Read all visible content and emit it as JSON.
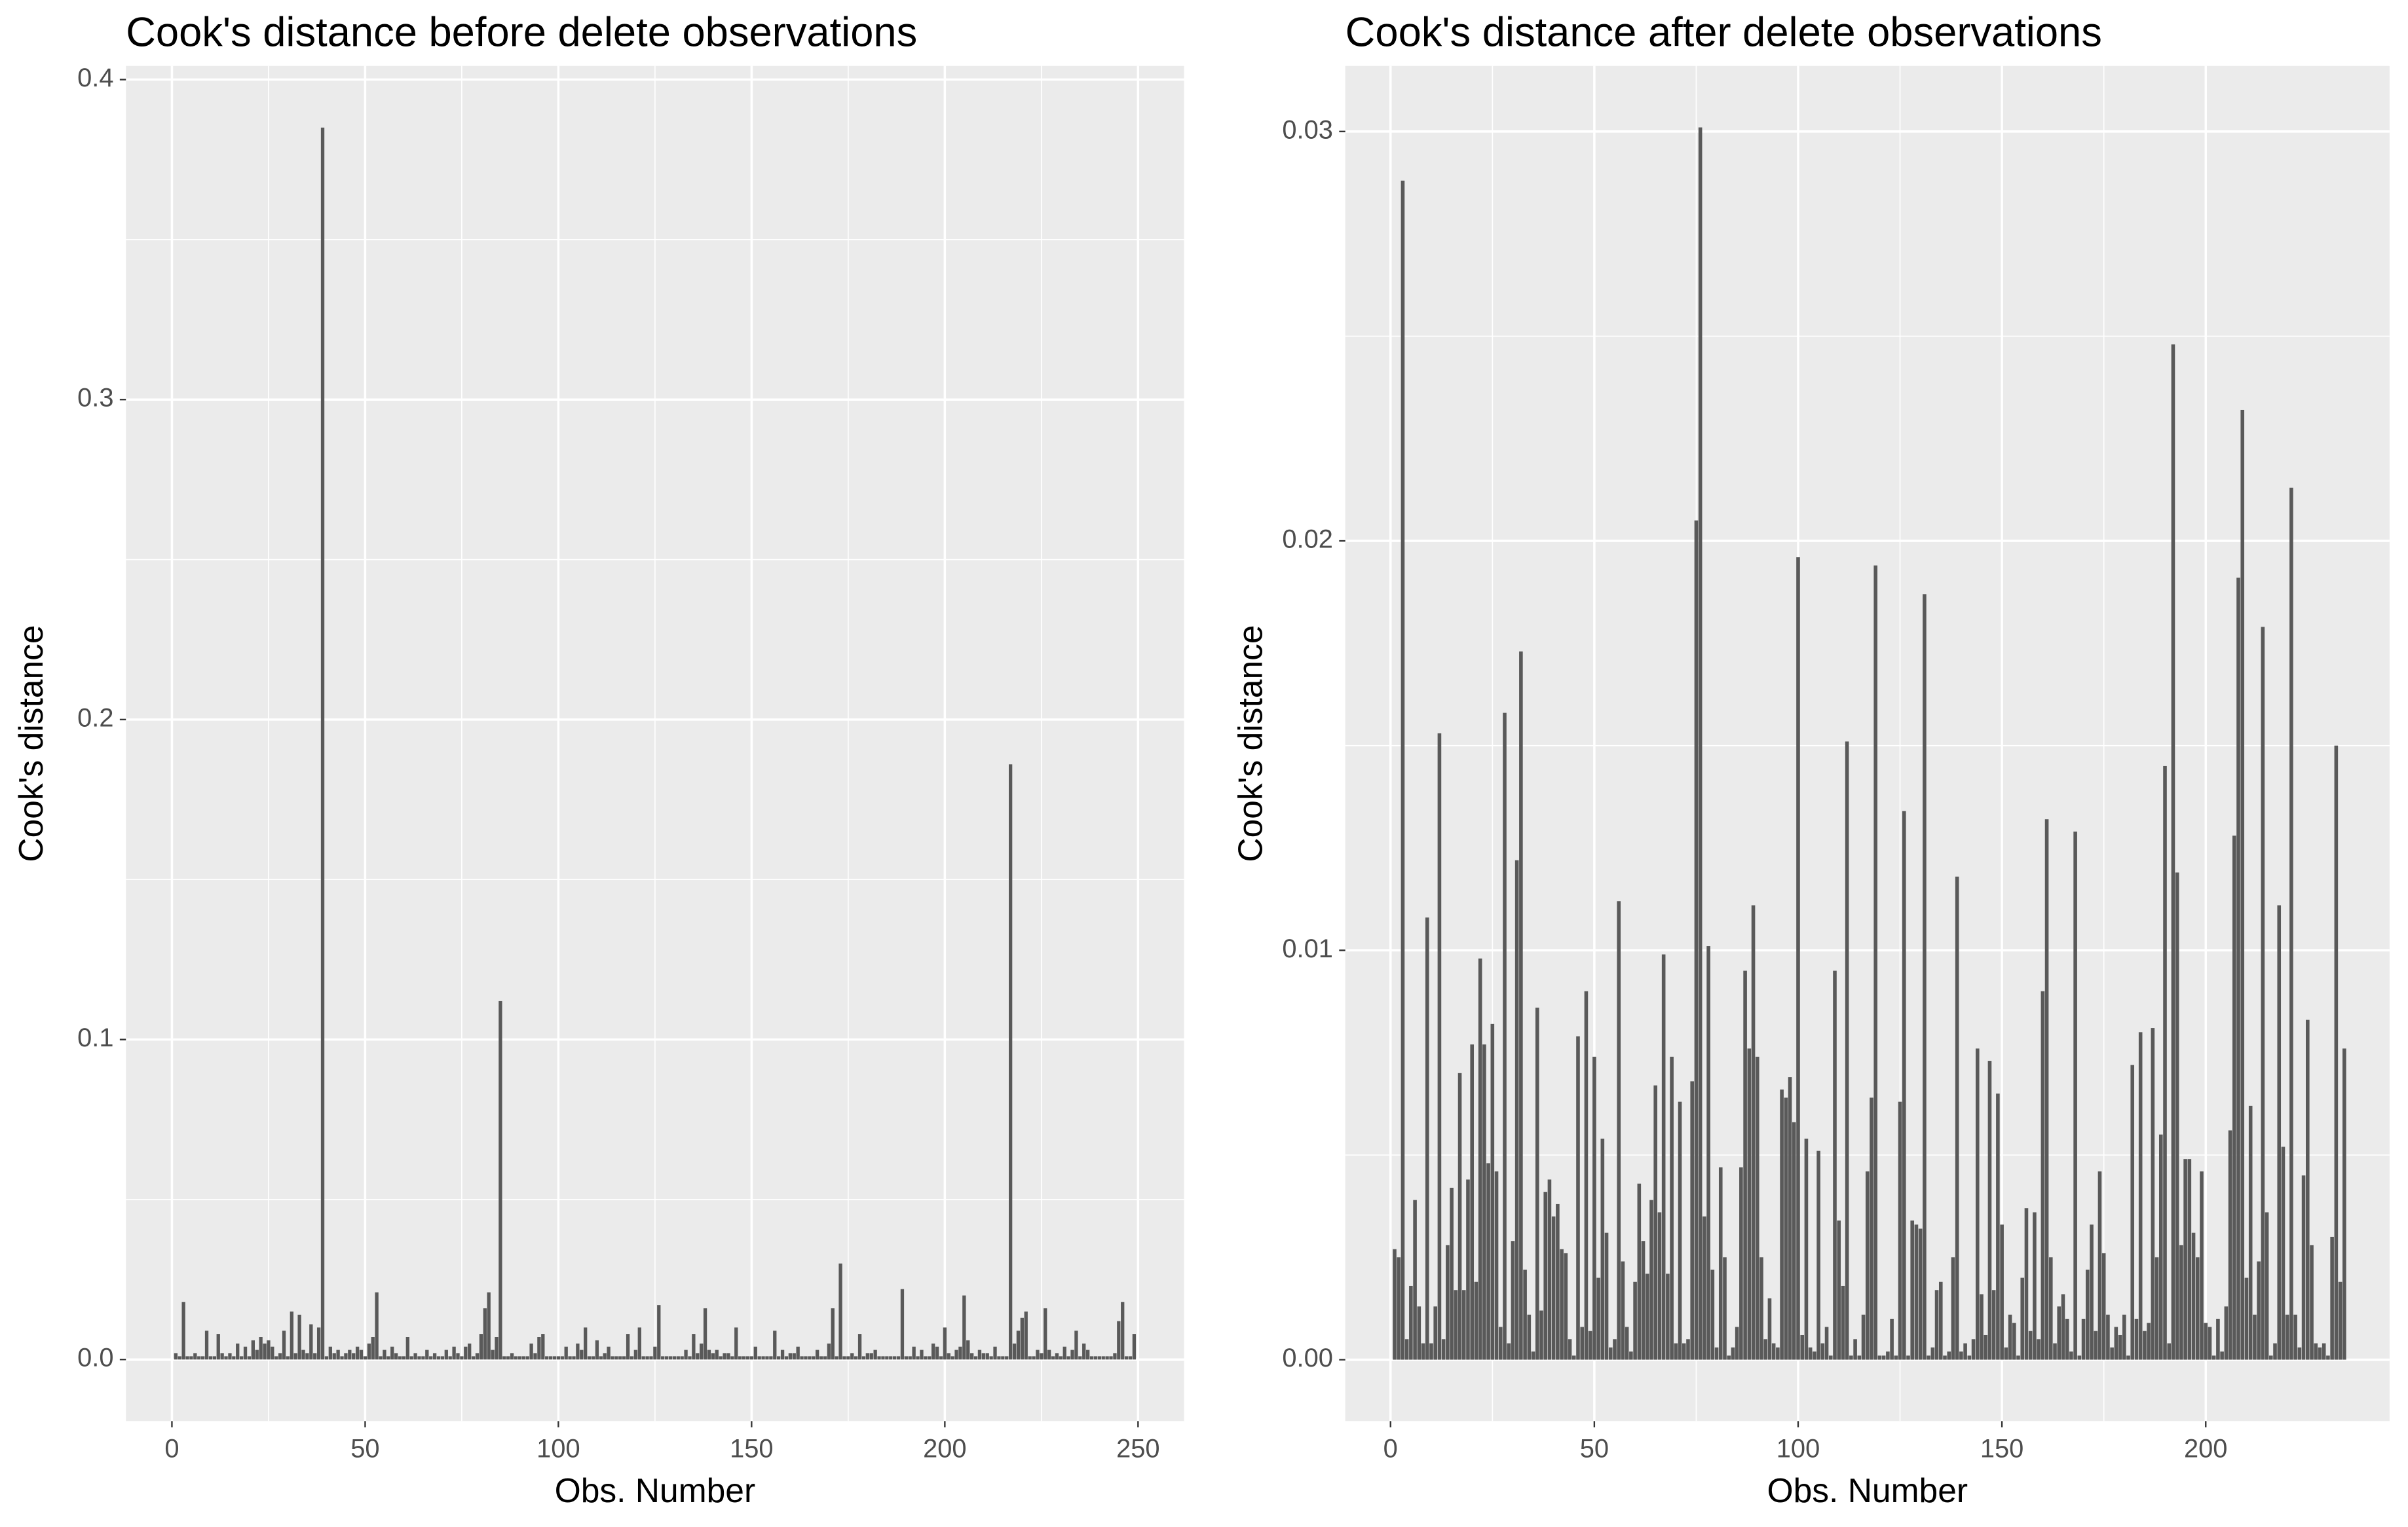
{
  "chart_data": [
    {
      "type": "bar",
      "title": "Cook's distance before delete observations",
      "x_label": "Obs. Number",
      "y_label": "Cook's distance",
      "color": "#595959",
      "grid": true,
      "xlim": [
        -11.9,
        261.9
      ],
      "xticks": [
        0,
        50,
        100,
        150,
        200,
        250
      ],
      "ylim": [
        -0.01925,
        0.40425
      ],
      "yticks": [
        {
          "value": 0,
          "label": "0.0"
        },
        0.1,
        0.2,
        0.3,
        0.4
      ],
      "x": [
        1,
        2,
        3,
        4,
        5,
        6,
        7,
        8,
        9,
        10,
        11,
        12,
        13,
        14,
        15,
        16,
        17,
        18,
        19,
        20,
        21,
        22,
        23,
        24,
        25,
        26,
        27,
        28,
        29,
        30,
        31,
        32,
        33,
        34,
        35,
        36,
        37,
        38,
        39,
        40,
        41,
        42,
        43,
        44,
        45,
        46,
        47,
        48,
        49,
        50,
        51,
        52,
        53,
        54,
        55,
        56,
        57,
        58,
        59,
        60,
        61,
        62,
        63,
        64,
        65,
        66,
        67,
        68,
        69,
        70,
        71,
        72,
        73,
        74,
        75,
        76,
        77,
        78,
        79,
        80,
        81,
        82,
        83,
        84,
        85,
        86,
        87,
        88,
        89,
        90,
        91,
        92,
        93,
        94,
        95,
        96,
        97,
        98,
        99,
        100,
        101,
        102,
        103,
        104,
        105,
        106,
        107,
        108,
        109,
        110,
        111,
        112,
        113,
        114,
        115,
        116,
        117,
        118,
        119,
        120,
        121,
        122,
        123,
        124,
        125,
        126,
        127,
        128,
        129,
        130,
        131,
        132,
        133,
        134,
        135,
        136,
        137,
        138,
        139,
        140,
        141,
        142,
        143,
        144,
        145,
        146,
        147,
        148,
        149,
        150,
        151,
        152,
        153,
        154,
        155,
        156,
        157,
        158,
        159,
        160,
        161,
        162,
        163,
        164,
        165,
        166,
        167,
        168,
        169,
        170,
        171,
        172,
        173,
        174,
        175,
        176,
        177,
        178,
        179,
        180,
        181,
        182,
        183,
        184,
        185,
        186,
        187,
        188,
        189,
        190,
        191,
        192,
        193,
        194,
        195,
        196,
        197,
        198,
        199,
        200,
        201,
        202,
        203,
        204,
        205,
        206,
        207,
        208,
        209,
        210,
        211,
        212,
        213,
        214,
        215,
        216,
        217,
        218,
        219,
        220,
        221,
        222,
        223,
        224,
        225,
        226,
        227,
        228,
        229,
        230,
        231,
        232,
        233,
        234,
        235,
        236,
        237,
        238,
        239,
        240,
        241,
        242,
        243,
        244,
        245,
        246,
        247,
        248,
        249
      ],
      "values": [
        0.002,
        0.001,
        0.018,
        0.001,
        0.001,
        0.002,
        0.001,
        0.001,
        0.009,
        0.001,
        0.001,
        0.008,
        0.002,
        0.001,
        0.002,
        0.001,
        0.005,
        0.001,
        0.004,
        0.001,
        0.006,
        0.003,
        0.007,
        0.005,
        0.006,
        0.004,
        0.001,
        0.002,
        0.009,
        0.001,
        0.015,
        0.002,
        0.014,
        0.003,
        0.002,
        0.011,
        0.002,
        0.01,
        0.385,
        0.001,
        0.004,
        0.002,
        0.003,
        0.001,
        0.002,
        0.003,
        0.002,
        0.004,
        0.003,
        0.001,
        0.005,
        0.007,
        0.021,
        0.001,
        0.003,
        0.001,
        0.004,
        0.002,
        0.001,
        0.001,
        0.007,
        0.001,
        0.002,
        0.001,
        0.001,
        0.003,
        0.001,
        0.002,
        0.001,
        0.001,
        0.003,
        0.001,
        0.004,
        0.002,
        0.001,
        0.004,
        0.005,
        0.001,
        0.002,
        0.008,
        0.016,
        0.021,
        0.003,
        0.007,
        0.112,
        0.001,
        0.001,
        0.002,
        0.001,
        0.001,
        0.001,
        0.001,
        0.005,
        0.002,
        0.007,
        0.008,
        0.001,
        0.001,
        0.001,
        0.001,
        0.001,
        0.004,
        0.001,
        0.001,
        0.005,
        0.003,
        0.01,
        0.001,
        0.001,
        0.006,
        0.001,
        0.002,
        0.004,
        0.001,
        0.001,
        0.001,
        0.001,
        0.008,
        0.001,
        0.003,
        0.01,
        0.001,
        0.001,
        0.001,
        0.004,
        0.017,
        0.001,
        0.001,
        0.001,
        0.001,
        0.001,
        0.001,
        0.003,
        0.001,
        0.008,
        0.002,
        0.005,
        0.016,
        0.003,
        0.002,
        0.003,
        0.001,
        0.002,
        0.002,
        0.001,
        0.01,
        0.001,
        0.001,
        0.001,
        0.001,
        0.004,
        0.001,
        0.001,
        0.001,
        0.001,
        0.009,
        0.001,
        0.003,
        0.001,
        0.002,
        0.002,
        0.004,
        0.001,
        0.001,
        0.001,
        0.001,
        0.003,
        0.001,
        0.001,
        0.005,
        0.016,
        0.001,
        0.03,
        0.001,
        0.001,
        0.002,
        0.001,
        0.008,
        0.001,
        0.002,
        0.002,
        0.003,
        0.001,
        0.001,
        0.001,
        0.001,
        0.001,
        0.001,
        0.022,
        0.001,
        0.001,
        0.004,
        0.001,
        0.003,
        0.001,
        0.001,
        0.005,
        0.004,
        0.001,
        0.01,
        0.002,
        0.001,
        0.003,
        0.004,
        0.02,
        0.006,
        0.002,
        0.001,
        0.003,
        0.002,
        0.002,
        0.001,
        0.004,
        0.001,
        0.001,
        0.001,
        0.186,
        0.005,
        0.009,
        0.013,
        0.015,
        0.001,
        0.001,
        0.003,
        0.002,
        0.016,
        0.003,
        0.001,
        0.002,
        0.001,
        0.004,
        0.001,
        0.003,
        0.009,
        0.001,
        0.005,
        0.003,
        0.001,
        0.001,
        0.001,
        0.001,
        0.001,
        0.001,
        0.002,
        0.012,
        0.018,
        0.001,
        0.001,
        0.008
      ]
    },
    {
      "type": "bar",
      "title": "Cook's distance after delete observations",
      "x_label": "Obs. Number",
      "y_label": "Cook's distance",
      "color": "#595959",
      "grid": true,
      "xlim": [
        -11.1,
        245.1
      ],
      "xticks": [
        0,
        50,
        100,
        150,
        200
      ],
      "ylim": [
        -0.0015,
        0.0316
      ],
      "yticks": [
        {
          "value": 0,
          "label": "0.00"
        },
        {
          "value": 0.01,
          "label": "0.01"
        },
        {
          "value": 0.02,
          "label": "0.02"
        },
        {
          "value": 0.03,
          "label": "0.03"
        }
      ],
      "x": [
        1,
        2,
        3,
        4,
        5,
        6,
        7,
        8,
        9,
        10,
        11,
        12,
        13,
        14,
        15,
        16,
        17,
        18,
        19,
        20,
        21,
        22,
        23,
        24,
        25,
        26,
        27,
        28,
        29,
        30,
        31,
        32,
        33,
        34,
        35,
        36,
        37,
        38,
        39,
        40,
        41,
        42,
        43,
        44,
        45,
        46,
        47,
        48,
        49,
        50,
        51,
        52,
        53,
        54,
        55,
        56,
        57,
        58,
        59,
        60,
        61,
        62,
        63,
        64,
        65,
        66,
        67,
        68,
        69,
        70,
        71,
        72,
        73,
        74,
        75,
        76,
        77,
        78,
        79,
        80,
        81,
        82,
        83,
        84,
        85,
        86,
        87,
        88,
        89,
        90,
        91,
        92,
        93,
        94,
        95,
        96,
        97,
        98,
        99,
        100,
        101,
        102,
        103,
        104,
        105,
        106,
        107,
        108,
        109,
        110,
        111,
        112,
        113,
        114,
        115,
        116,
        117,
        118,
        119,
        120,
        121,
        122,
        123,
        124,
        125,
        126,
        127,
        128,
        129,
        130,
        131,
        132,
        133,
        134,
        135,
        136,
        137,
        138,
        139,
        140,
        141,
        142,
        143,
        144,
        145,
        146,
        147,
        148,
        149,
        150,
        151,
        152,
        153,
        154,
        155,
        156,
        157,
        158,
        159,
        160,
        161,
        162,
        163,
        164,
        165,
        166,
        167,
        168,
        169,
        170,
        171,
        172,
        173,
        174,
        175,
        176,
        177,
        178,
        179,
        180,
        181,
        182,
        183,
        184,
        185,
        186,
        187,
        188,
        189,
        190,
        191,
        192,
        193,
        194,
        195,
        196,
        197,
        198,
        199,
        200,
        201,
        202,
        203,
        204,
        205,
        206,
        207,
        208,
        209,
        210,
        211,
        212,
        213,
        214,
        215,
        216,
        217,
        218,
        219,
        220,
        221,
        222,
        223,
        224,
        225,
        226,
        227,
        228,
        229,
        230,
        231,
        232,
        233,
        234
      ],
      "values": [
        0.0027,
        0.0025,
        0.0288,
        0.0005,
        0.0018,
        0.0039,
        0.0013,
        0.0004,
        0.0108,
        0.0004,
        0.0013,
        0.0153,
        0.0005,
        0.0028,
        0.0042,
        0.0017,
        0.007,
        0.0017,
        0.0044,
        0.0077,
        0.0019,
        0.0098,
        0.0077,
        0.0048,
        0.0082,
        0.0046,
        0.0008,
        0.0158,
        0.0004,
        0.0029,
        0.0122,
        0.0173,
        0.0022,
        0.0011,
        0.0002,
        0.0086,
        0.0012,
        0.0041,
        0.0044,
        0.0035,
        0.0038,
        0.0027,
        0.0026,
        0.0005,
        0.0001,
        0.0079,
        0.0008,
        0.009,
        0.0007,
        0.0074,
        0.002,
        0.0054,
        0.0031,
        0.0003,
        0.0005,
        0.0112,
        0.0024,
        0.0008,
        0.0002,
        0.0019,
        0.0043,
        0.0029,
        0.0021,
        0.0039,
        0.0067,
        0.0036,
        0.0099,
        0.0021,
        0.0074,
        0.0004,
        0.0063,
        0.0004,
        0.0005,
        0.0068,
        0.0205,
        0.0301,
        0.0035,
        0.0101,
        0.0022,
        0.0003,
        0.0047,
        0.0025,
        0.0001,
        0.0003,
        0.0008,
        0.0047,
        0.0095,
        0.0076,
        0.0111,
        0.0074,
        0.0025,
        0.0005,
        0.0015,
        0.0004,
        0.0003,
        0.0066,
        0.0064,
        0.0069,
        0.0058,
        0.0196,
        0.0006,
        0.0054,
        0.0003,
        0.0002,
        0.0051,
        0.0004,
        0.0008,
        0.0001,
        0.0095,
        0.0034,
        0.0018,
        0.0151,
        0.0001,
        0.0005,
        0.0001,
        0.0011,
        0.0046,
        0.0064,
        0.0194,
        0.0001,
        0.0001,
        0.0002,
        0.001,
        0.0001,
        0.0063,
        0.0134,
        0.0001,
        0.0034,
        0.0033,
        0.0032,
        0.0187,
        0.0001,
        0.0003,
        0.0017,
        0.0019,
        0.0001,
        0.0002,
        0.0025,
        0.0118,
        0.0002,
        0.0004,
        0.0001,
        0.0005,
        0.0076,
        0.0016,
        0.0006,
        0.0073,
        0.0017,
        0.0065,
        0.0033,
        0.0003,
        0.0011,
        0.0009,
        0.0001,
        0.002,
        0.0037,
        0.0007,
        0.0036,
        0.0005,
        0.009,
        0.0132,
        0.0025,
        0.0004,
        0.0013,
        0.0016,
        0.001,
        0.0002,
        0.0129,
        0.0001,
        0.001,
        0.0022,
        0.0033,
        0.0007,
        0.0046,
        0.0026,
        0.0011,
        0.0003,
        0.0008,
        0.0006,
        0.0011,
        0.0001,
        0.0072,
        0.001,
        0.008,
        0.0007,
        0.0009,
        0.0081,
        0.0025,
        0.0055,
        0.0145,
        0.0004,
        0.0248,
        0.0119,
        0.0028,
        0.0049,
        0.0049,
        0.0031,
        0.0025,
        0.0046,
        0.0009,
        0.0008,
        0.0001,
        0.001,
        0.0002,
        0.0013,
        0.0056,
        0.0128,
        0.0191,
        0.0232,
        0.002,
        0.0062,
        0.0011,
        0.0024,
        0.0179,
        0.0036,
        0.0001,
        0.0004,
        0.0111,
        0.0052,
        0.0011,
        0.0213,
        0.0011,
        0.0003,
        0.0045,
        0.0083,
        0.0028,
        0.0004,
        0.0003,
        0.0004,
        0.0001,
        0.003,
        0.015,
        0.0019,
        0.0076
      ]
    }
  ]
}
